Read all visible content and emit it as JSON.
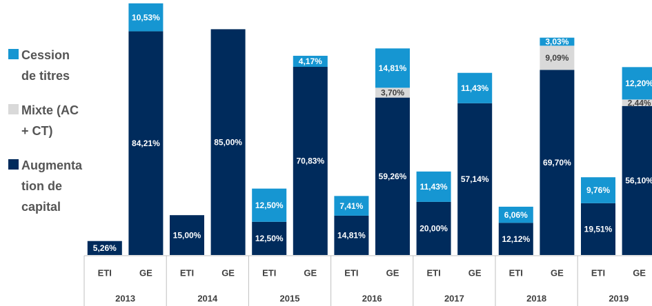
{
  "chart_data": {
    "type": "bar",
    "stacked": true,
    "categories": [
      "ETI",
      "GE",
      "ETI",
      "GE",
      "ETI",
      "GE",
      "ETI",
      "GE",
      "ETI",
      "GE",
      "ETI",
      "GE",
      "ETI",
      "GE"
    ],
    "groups": [
      "2013",
      "2014",
      "2015",
      "2016",
      "2017",
      "2018",
      "2019"
    ],
    "ylim": [
      0,
      96
    ],
    "series": [
      {
        "name": "Cession de titres",
        "color": "#1696d2",
        "label_color": "#ffffff",
        "values": [
          null,
          10.53,
          null,
          null,
          12.5,
          4.17,
          7.41,
          14.81,
          11.43,
          11.43,
          6.06,
          3.03,
          9.76,
          12.2
        ],
        "value_labels": [
          null,
          "10,53%",
          null,
          null,
          "12,50%",
          "4,17%",
          "7,41%",
          "14,81%",
          "11,43%",
          "11,43%",
          "6,06%",
          "3,03%",
          "9,76%",
          "12,20%"
        ]
      },
      {
        "name": "Mixte (AC + CT)",
        "color": "#d9d9d9",
        "label_color": "#404040",
        "values": [
          null,
          null,
          null,
          null,
          null,
          null,
          null,
          3.7,
          null,
          null,
          null,
          9.09,
          null,
          2.44
        ],
        "value_labels": [
          null,
          null,
          null,
          null,
          null,
          null,
          null,
          "3,70%",
          null,
          null,
          null,
          "9,09%",
          null,
          "2,44%"
        ]
      },
      {
        "name": "Augmentation de capital",
        "color": "#002b5c",
        "label_color": "#ffffff",
        "values": [
          5.26,
          84.21,
          15.0,
          85.0,
          12.5,
          70.83,
          14.81,
          59.26,
          20.0,
          57.14,
          12.12,
          69.7,
          19.51,
          56.1
        ],
        "value_labels": [
          "5,26%",
          "84,21%",
          "15,00%",
          "85,00%",
          "12,50%",
          "70,83%",
          "14,81%",
          "59,26%",
          "20,00%",
          "57,14%",
          "12,12%",
          "69,70%",
          "19,51%",
          "56,10%"
        ]
      }
    ],
    "legend": "left"
  }
}
